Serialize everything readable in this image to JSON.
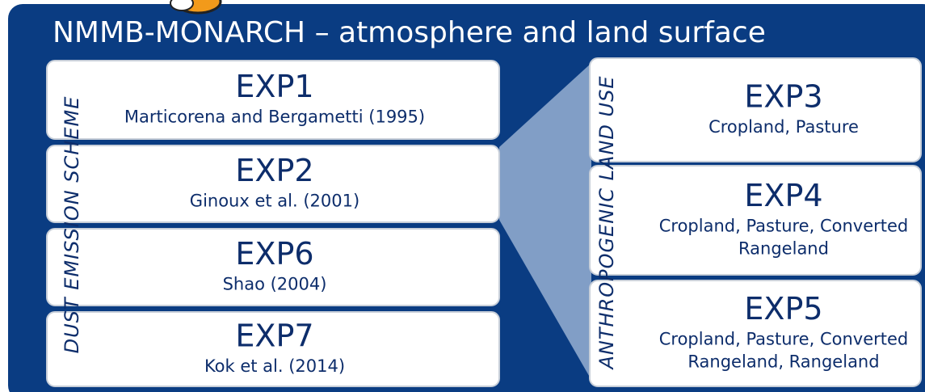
{
  "title": "NMMB-MONARCH – atmosphere and land surface",
  "left_group": {
    "label": "DUST EMISSION SCHEME",
    "boxes": [
      {
        "name": "EXP1",
        "lines": [
          "Marticorena and Bergametti (1995)"
        ]
      },
      {
        "name": "EXP2",
        "lines": [
          "Ginoux et al. (2001)"
        ]
      },
      {
        "name": "EXP6",
        "lines": [
          "Shao (2004)"
        ]
      },
      {
        "name": "EXP7",
        "lines": [
          "Kok et al. (2014)"
        ]
      }
    ]
  },
  "right_group": {
    "label": "ANTHROPOGENIC LAND USE",
    "boxes": [
      {
        "name": "EXP3",
        "lines": [
          "Cropland, Pasture"
        ]
      },
      {
        "name": "EXP4",
        "lines": [
          "Cropland, Pasture, Converted",
          "Rangeland"
        ]
      },
      {
        "name": "EXP5",
        "lines": [
          "Cropland, Pasture, Converted",
          "Rangeland, Rangeland"
        ]
      }
    ]
  }
}
